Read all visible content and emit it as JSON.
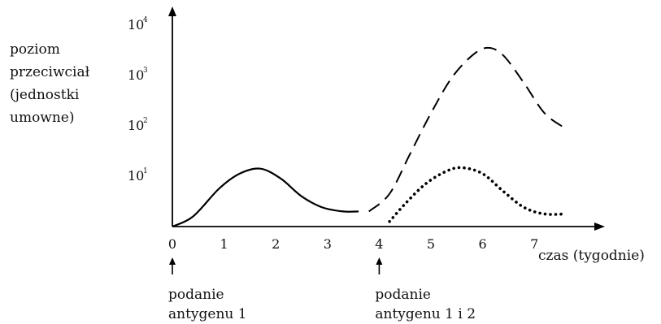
{
  "chart_data": {
    "type": "line",
    "ylabel_lines": [
      "poziom",
      "przeciwciał",
      "(jednostki",
      "umowne)"
    ],
    "xlabel": "czas (tygodnie)",
    "x_ticks": [
      "0",
      "1",
      "2",
      "3",
      "4",
      "5",
      "6",
      "7"
    ],
    "y_ticks": [
      {
        "base": "10",
        "exp": "1"
      },
      {
        "base": "10",
        "exp": "2"
      },
      {
        "base": "10",
        "exp": "3"
      },
      {
        "base": "10",
        "exp": "4"
      }
    ],
    "xlim": [
      0,
      7.6
    ],
    "ylim": [
      0,
      4
    ],
    "scale": "log",
    "annotations": [
      {
        "x": 0,
        "lines": [
          "podanie",
          "antygenu 1"
        ]
      },
      {
        "x": 4,
        "lines": [
          "podanie",
          "antygenu 1 i 2"
        ]
      }
    ],
    "series": [
      {
        "style": "solid",
        "points": [
          [
            0,
            0
          ],
          [
            0.4,
            0.2
          ],
          [
            0.9,
            0.75
          ],
          [
            1.3,
            1.05
          ],
          [
            1.7,
            1.15
          ],
          [
            2.1,
            0.95
          ],
          [
            2.5,
            0.6
          ],
          [
            2.9,
            0.38
          ],
          [
            3.3,
            0.3
          ],
          [
            3.6,
            0.3
          ]
        ]
      },
      {
        "style": "dashed",
        "points": [
          [
            3.8,
            0.3
          ],
          [
            4.2,
            0.65
          ],
          [
            4.6,
            1.45
          ],
          [
            5.0,
            2.25
          ],
          [
            5.4,
            2.95
          ],
          [
            5.8,
            3.4
          ],
          [
            6.1,
            3.55
          ],
          [
            6.4,
            3.4
          ],
          [
            6.8,
            2.85
          ],
          [
            7.2,
            2.25
          ],
          [
            7.6,
            1.95
          ]
        ]
      },
      {
        "style": "dotted",
        "points": [
          [
            4.2,
            0.1
          ],
          [
            4.5,
            0.45
          ],
          [
            4.9,
            0.85
          ],
          [
            5.3,
            1.1
          ],
          [
            5.6,
            1.17
          ],
          [
            6.0,
            1.05
          ],
          [
            6.4,
            0.7
          ],
          [
            6.8,
            0.38
          ],
          [
            7.2,
            0.25
          ],
          [
            7.6,
            0.25
          ]
        ]
      }
    ]
  }
}
